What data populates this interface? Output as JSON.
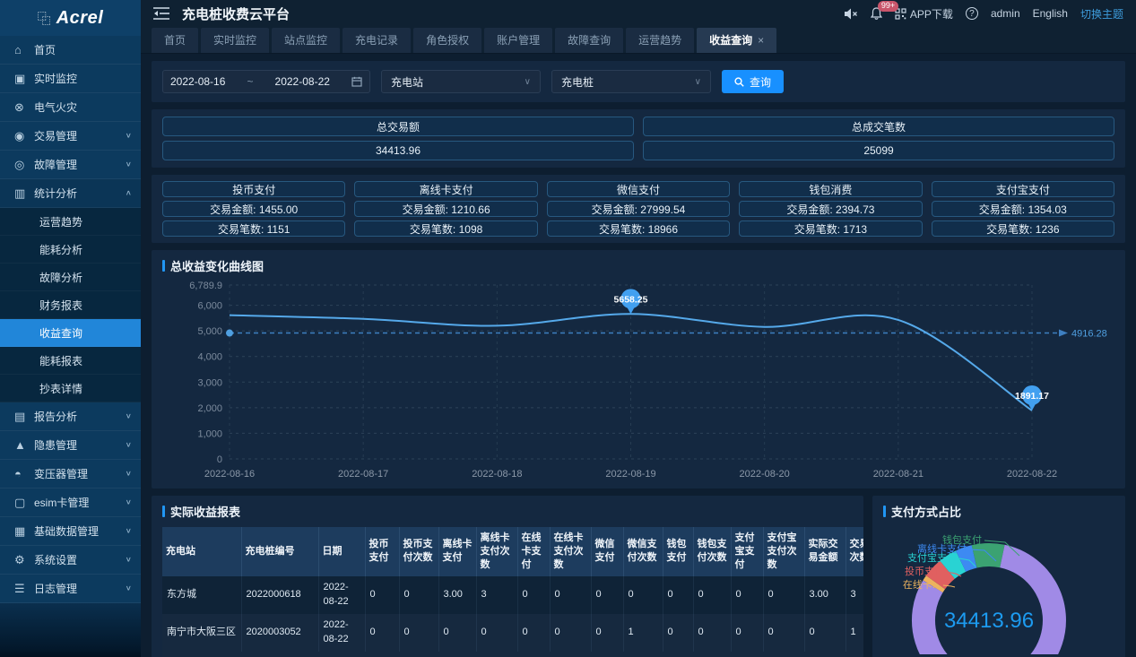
{
  "header": {
    "logo": "Acrel",
    "title": "充电桩收费云平台",
    "notification_badge": "99+",
    "app_download": "APP下载",
    "username": "admin",
    "language": "English",
    "theme_switch": "切换主题"
  },
  "sidebar": {
    "items_top": [
      {
        "key": "home",
        "label": "首页",
        "icon": "home-icon",
        "glyph": "⌂",
        "chevron": ""
      },
      {
        "key": "realtime-monitor",
        "label": "实时监控",
        "icon": "monitor-icon",
        "glyph": "▣",
        "chevron": ""
      },
      {
        "key": "electric-fire",
        "label": "电气火灾",
        "icon": "electric-fire-icon",
        "glyph": "⊗",
        "chevron": ""
      },
      {
        "key": "transaction-mgmt",
        "label": "交易管理",
        "icon": "transaction-icon",
        "glyph": "◉",
        "chevron": "down"
      },
      {
        "key": "fault-mgmt",
        "label": "故障管理",
        "icon": "fault-icon",
        "glyph": "◎",
        "chevron": "down"
      },
      {
        "key": "stats-analysis",
        "label": "统计分析",
        "icon": "stats-icon",
        "glyph": "▥",
        "chevron": "up"
      }
    ],
    "submenu": [
      {
        "key": "operation-trend",
        "label": "运营趋势"
      },
      {
        "key": "energy-analysis",
        "label": "能耗分析"
      },
      {
        "key": "fault-analysis",
        "label": "故障分析"
      },
      {
        "key": "finance-report",
        "label": "财务报表"
      },
      {
        "key": "income-query",
        "label": "收益查询"
      },
      {
        "key": "energy-report",
        "label": "能耗报表"
      },
      {
        "key": "meter-detail",
        "label": "抄表详情"
      }
    ],
    "active_submenu": "收益查询",
    "items_bottom": [
      {
        "key": "report-analysis",
        "label": "报告分析",
        "icon": "report-icon",
        "glyph": "▤",
        "chevron": "down"
      },
      {
        "key": "hazard-mgmt",
        "label": "隐患管理",
        "icon": "hazard-icon",
        "glyph": "▲",
        "chevron": "down"
      },
      {
        "key": "transformer-mgmt",
        "label": "变压器管理",
        "icon": "transformer-icon",
        "glyph": "◓",
        "chevron": "down"
      },
      {
        "key": "esim-mgmt",
        "label": "esim卡管理",
        "icon": "esim-icon",
        "glyph": "▢",
        "chevron": "down"
      },
      {
        "key": "base-data-mgmt",
        "label": "基础数据管理",
        "icon": "database-icon",
        "glyph": "▦",
        "chevron": "down"
      },
      {
        "key": "system-settings",
        "label": "系统设置",
        "icon": "gear-icon",
        "glyph": "⚙",
        "chevron": "down"
      },
      {
        "key": "log-mgmt",
        "label": "日志管理",
        "icon": "log-icon",
        "glyph": "☰",
        "chevron": "down"
      }
    ]
  },
  "tabs": {
    "items": [
      "首页",
      "实时监控",
      "站点监控",
      "充电记录",
      "角色授权",
      "账户管理",
      "故障查询",
      "运营趋势",
      "收益查询"
    ],
    "active": "收益查询",
    "close_glyph": "×"
  },
  "filters": {
    "date_start": "2022-08-16",
    "date_separator": "~",
    "date_end": "2022-08-22",
    "station_select": "充电站",
    "pile_select": "充电桩",
    "query_label": "查询"
  },
  "summary": [
    {
      "label": "总交易额",
      "value": "34413.96"
    },
    {
      "label": "总成交笔数",
      "value": "25099"
    }
  ],
  "payments": {
    "amount_prefix": "交易金额:",
    "count_prefix": "交易笔数:",
    "cards": [
      {
        "name": "投币支付",
        "amount": "1455.00",
        "count": "1151"
      },
      {
        "name": "离线卡支付",
        "amount": "1210.66",
        "count": "1098"
      },
      {
        "name": "微信支付",
        "amount": "27999.54",
        "count": "18966"
      },
      {
        "name": "钱包消费",
        "amount": "2394.73",
        "count": "1713"
      },
      {
        "name": "支付宝支付",
        "amount": "1354.03",
        "count": "1236"
      }
    ]
  },
  "line_section_title": "总收益变化曲线图",
  "table_section_title": "实际收益报表",
  "pie_section_title": "支付方式占比",
  "chart_data": [
    {
      "type": "line",
      "title": "总收益变化曲线图",
      "x": [
        "2022-08-16",
        "2022-08-17",
        "2022-08-18",
        "2022-08-19",
        "2022-08-20",
        "2022-08-21",
        "2022-08-22"
      ],
      "values": [
        5612.34,
        5468.2,
        5201.5,
        5658.25,
        5153.8,
        5428.7,
        1891.17
      ],
      "max_point": {
        "x": "2022-08-19",
        "label": "5658.25"
      },
      "min_point": {
        "x": "2022-08-22",
        "label": "1891.17"
      },
      "average": 4916.28,
      "average_label": "4916.28",
      "ylim": [
        0,
        6789.9
      ],
      "yticks": [
        0,
        1000,
        2000,
        3000,
        4000,
        5000,
        6000,
        6789.9
      ],
      "ytick_labels": [
        "0",
        "1,000",
        "2,000",
        "3,000",
        "4,000",
        "5,000",
        "6,000",
        "6,789.9"
      ],
      "grid": "dashed",
      "line_color": "#55a9ea",
      "avg_color": "#3e7fc1",
      "marker_color": "#42a0f0",
      "legend_position": "none"
    },
    {
      "type": "pie",
      "title": "支付方式占比",
      "center_value": "34413.96",
      "center_color": "#1d9bf0",
      "slices": [
        {
          "name": "钱包支付",
          "value": 2394.73,
          "color": "#3ba272",
          "display": "钱包支付"
        },
        {
          "name": "微信支付",
          "value": 27999.54,
          "color": "#a08ae6",
          "display": ""
        },
        {
          "name": "在线卡支付",
          "value": 0,
          "color": "#ecb35e",
          "display": "在线卡..."
        },
        {
          "name": "投币支付",
          "value": 1455.0,
          "color": "#e06060",
          "display": "投币支付"
        },
        {
          "name": "支付宝支付",
          "value": 1354.03,
          "color": "#29d3d3",
          "display": "支付宝支付"
        },
        {
          "name": "离线卡支付",
          "value": 1210.66,
          "color": "#3d8af2",
          "display": "离线卡支付"
        }
      ]
    }
  ],
  "table": {
    "columns": [
      "充电站",
      "充电桩编号",
      "日期",
      "投币支付",
      "投币支付次数",
      "离线卡支付",
      "离线卡支付次数",
      "在线卡支付",
      "在线卡支付次数",
      "微信支付",
      "微信支付次数",
      "钱包支付",
      "钱包支付次数",
      "支付宝支付",
      "支付宝支付次数",
      "实际交易金额",
      "交易次数"
    ],
    "rows": [
      [
        "东方城",
        "2022000618",
        "2022-08-22",
        "0",
        "0",
        "3.00",
        "3",
        "0",
        "0",
        "0",
        "0",
        "0",
        "0",
        "0",
        "0",
        "3.00",
        "3"
      ],
      [
        "南宁市大阪三区",
        "2020003052",
        "2022-08-22",
        "0",
        "0",
        "0",
        "0",
        "0",
        "0",
        "0",
        "1",
        "0",
        "0",
        "0",
        "0",
        "0",
        "1"
      ]
    ]
  }
}
